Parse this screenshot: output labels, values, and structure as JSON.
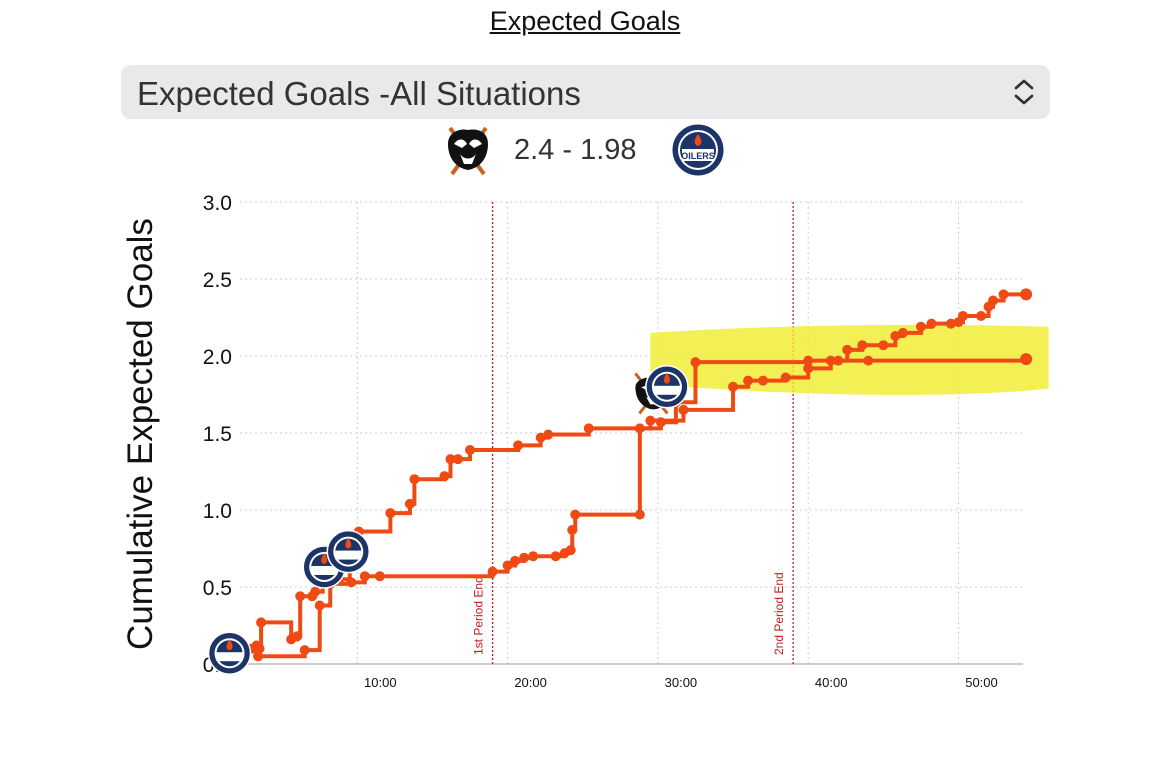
{
  "header": {
    "title": "Expected Goals"
  },
  "selector": {
    "value": "Expected Goals -All Situations"
  },
  "score": {
    "text": "2.4 - 1.98",
    "home_logo": "ducks-logo",
    "away_logo": "oilers-logo"
  },
  "colors": {
    "line": "#f04a14",
    "marker": "#f04a14",
    "period_line": "#c41a1a",
    "highlight": "#f0ec2a"
  },
  "chart_data": {
    "type": "line",
    "ylabel": "Cumulative Expected Goals",
    "xlabel": "",
    "ylim": [
      0,
      3
    ],
    "xlim": [
      0,
      54
    ],
    "yticks": [
      "0.0",
      "0.5",
      "1.0",
      "1.5",
      "2.0",
      "2.5",
      "3.0"
    ],
    "xticks": [
      {
        "value": 10,
        "label": "10:00"
      },
      {
        "value": 20,
        "label": "20:00"
      },
      {
        "value": 30,
        "label": "30:00"
      },
      {
        "value": 40,
        "label": "40:00"
      },
      {
        "value": 50,
        "label": "50:00"
      }
    ],
    "grid": true,
    "annotations": [
      {
        "x": 19,
        "label": "1st Period End"
      },
      {
        "x": 39,
        "label": "2nd Period End"
      }
    ],
    "highlight": {
      "x0": 29.5,
      "x1": 54,
      "y0": 1.8,
      "y1": 2.15
    },
    "series": [
      {
        "team": "ducks",
        "points": [
          [
            3.5,
            0.1
          ],
          [
            3.6,
            0.27
          ],
          [
            5.6,
            0.16
          ],
          [
            6,
            0.18
          ],
          [
            6.2,
            0.44
          ],
          [
            7,
            0.44
          ],
          [
            7.2,
            0.47
          ],
          [
            7.7,
            0.55
          ],
          [
            8.8,
            0.55
          ],
          [
            9.5,
            0.72
          ],
          [
            10.1,
            0.86
          ],
          [
            12.2,
            0.98
          ],
          [
            13.5,
            1.04
          ],
          [
            13.8,
            1.2
          ],
          [
            15.8,
            1.22
          ],
          [
            16.2,
            1.33
          ],
          [
            16.7,
            1.33
          ],
          [
            17.5,
            1.39
          ],
          [
            20.7,
            1.42
          ],
          [
            22.2,
            1.47
          ],
          [
            22.7,
            1.49
          ],
          [
            25.4,
            1.53
          ],
          [
            29.5,
            1.58
          ],
          [
            31.7,
            1.65
          ],
          [
            35,
            1.8
          ],
          [
            36,
            1.84
          ],
          [
            37,
            1.84
          ],
          [
            38.5,
            1.86
          ],
          [
            40,
            1.92
          ],
          [
            41.5,
            1.97
          ],
          [
            42,
            1.97
          ],
          [
            42.6,
            2.04
          ],
          [
            43.6,
            2.07
          ],
          [
            45,
            2.07
          ],
          [
            45.8,
            2.13
          ],
          [
            46.3,
            2.15
          ],
          [
            47.5,
            2.19
          ],
          [
            48.2,
            2.21
          ],
          [
            49.5,
            2.21
          ],
          [
            50,
            2.22
          ],
          [
            50.3,
            2.26
          ],
          [
            51.5,
            2.26
          ],
          [
            52,
            2.32
          ],
          [
            52.3,
            2.36
          ],
          [
            53,
            2.4
          ],
          [
            54.5,
            2.4
          ]
        ],
        "end": [
          54.5,
          2.4
        ]
      },
      {
        "team": "oilers",
        "points": [
          [
            2.7,
            0.1
          ],
          [
            3,
            0.1
          ],
          [
            3.3,
            0.12
          ],
          [
            3.4,
            0.05
          ],
          [
            6.5,
            0.09
          ],
          [
            7.5,
            0.38
          ],
          [
            8.2,
            0.52
          ],
          [
            9.6,
            0.53
          ],
          [
            10.5,
            0.57
          ],
          [
            11.5,
            0.57
          ],
          [
            19,
            0.6
          ],
          [
            20,
            0.64
          ],
          [
            20.5,
            0.67
          ],
          [
            21.1,
            0.69
          ],
          [
            21.7,
            0.7
          ],
          [
            23.2,
            0.7
          ],
          [
            23.8,
            0.72
          ],
          [
            24.2,
            0.74
          ],
          [
            24.3,
            0.87
          ],
          [
            24.5,
            0.97
          ],
          [
            28.8,
            0.97
          ],
          [
            28.8,
            1.53
          ],
          [
            30.2,
            1.57
          ],
          [
            31.2,
            1.7
          ],
          [
            32.5,
            1.96
          ],
          [
            40,
            1.97
          ],
          [
            44,
            1.97
          ],
          [
            54.5,
            1.98
          ]
        ],
        "end": [
          54.5,
          1.98
        ]
      }
    ],
    "team_markers": [
      {
        "team": "oilers",
        "x": 1.5,
        "y": 0.07
      },
      {
        "team": "oilers",
        "x": 7.8,
        "y": 0.63
      },
      {
        "team": "oilers",
        "x": 9.4,
        "y": 0.73
      },
      {
        "team": "ducks",
        "x": 29.7,
        "y": 1.77
      },
      {
        "team": "oilers",
        "x": 30.6,
        "y": 1.8
      }
    ]
  }
}
